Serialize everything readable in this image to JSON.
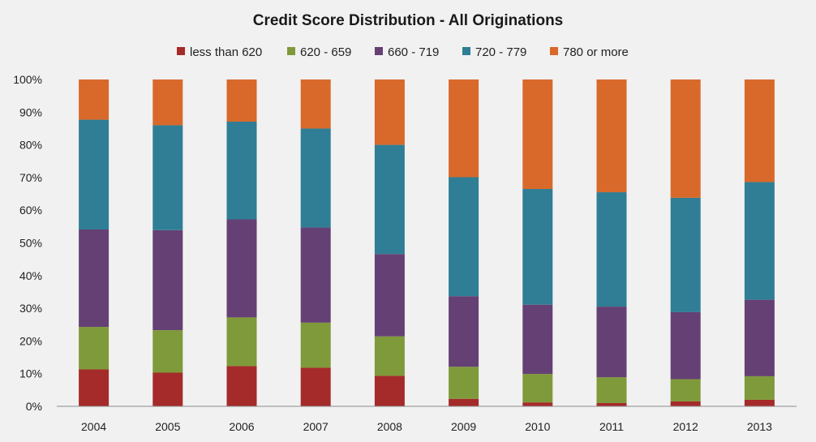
{
  "chart_data": {
    "type": "bar",
    "stacked": true,
    "title": "Credit Score Distribution - All Originations",
    "xlabel": "",
    "ylabel": "",
    "ylim": [
      0,
      100
    ],
    "y_ticks": [
      "0%",
      "10%",
      "20%",
      "30%",
      "40%",
      "50%",
      "60%",
      "70%",
      "80%",
      "90%",
      "100%"
    ],
    "grid": false,
    "legend_position": "top",
    "categories": [
      "2004",
      "2005",
      "2006",
      "2007",
      "2008",
      "2009",
      "2010",
      "2011",
      "2012",
      "2013"
    ],
    "series": [
      {
        "name": "less than 620",
        "color": "#a52a2a",
        "values": [
          11.3,
          10.3,
          12.3,
          11.8,
          9.3,
          2.3,
          1.2,
          1.0,
          1.5,
          2.0
        ]
      },
      {
        "name": "620 - 659",
        "color": "#7f9a3a",
        "values": [
          13.0,
          13.0,
          14.9,
          13.8,
          12.1,
          9.8,
          8.7,
          7.9,
          6.8,
          7.2
        ]
      },
      {
        "name": "660 - 719",
        "color": "#654074",
        "values": [
          29.8,
          30.6,
          30.0,
          29.1,
          25.2,
          21.6,
          21.2,
          21.6,
          20.5,
          23.4
        ]
      },
      {
        "name": "720 - 779",
        "color": "#2f7e95",
        "values": [
          33.6,
          32.1,
          29.9,
          30.3,
          33.4,
          36.4,
          35.4,
          35.0,
          35.0,
          36.0
        ]
      },
      {
        "name": "780 or more",
        "color": "#d8692a",
        "values": [
          12.3,
          14.0,
          12.9,
          15.0,
          20.0,
          29.9,
          33.5,
          34.5,
          36.2,
          31.4
        ]
      }
    ]
  }
}
